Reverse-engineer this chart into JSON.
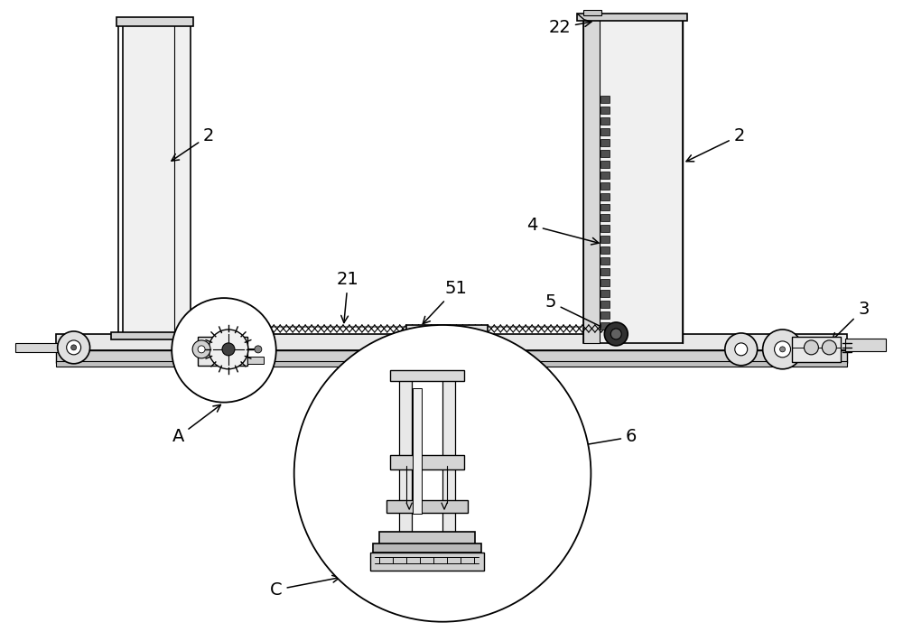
{
  "bg_color": "#ffffff",
  "line_color": "#000000",
  "lw_main": 1.3,
  "lw_thin": 0.7,
  "lw_thick": 2.0
}
